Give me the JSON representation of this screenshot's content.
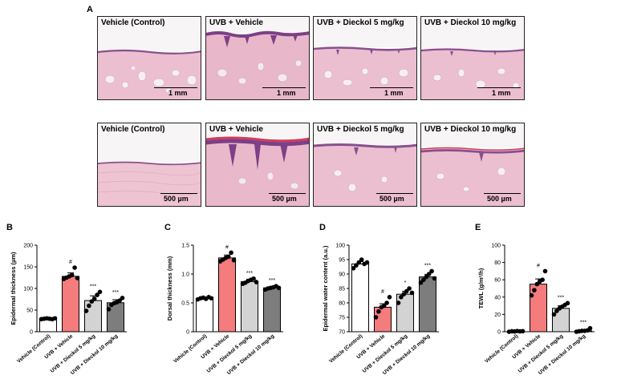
{
  "figure": {
    "panels": {
      "A": "A",
      "B": "B",
      "C": "C",
      "D": "D",
      "E": "E"
    },
    "histology": {
      "row1_scale": "1 mm",
      "row2_scale": "500 µm",
      "titles": [
        "Vehicle (Control)",
        "UVB + Vehicle",
        "UVB + Dieckol 5 mg/kg",
        "UVB + Dieckol 10 mg/kg"
      ]
    }
  },
  "chart_data": [
    {
      "type": "bar",
      "ylabel": "Epidermal thickness (µm)",
      "categories": [
        "Vehicle (Control)",
        "UVB + Vehicle",
        "UVB + Dieckol 5 mg/kg",
        "UVB + Dieckol 10 mg/kg"
      ],
      "values": [
        30,
        128,
        72,
        67
      ],
      "errors": [
        2,
        8,
        11,
        7
      ],
      "points": [
        [
          29,
          30,
          31,
          30,
          29,
          31
        ],
        [
          122,
          125,
          128,
          131,
          148,
          124
        ],
        [
          48,
          60,
          70,
          76,
          85,
          92
        ],
        [
          52,
          62,
          66,
          68,
          72,
          78
        ]
      ],
      "annotations": [
        "",
        "#",
        "***",
        "***"
      ],
      "colors": [
        "#ffffff",
        "#f47c7c",
        "#d3d3d3",
        "#7d7d7d"
      ],
      "ylim": [
        0,
        200
      ],
      "yticks": [
        "0",
        "50",
        "100",
        "150",
        "200"
      ]
    },
    {
      "type": "bar",
      "ylabel": "Dorsal thickness (mm)",
      "categories": [
        "Vehicle (Control)",
        "UVB + Vehicle",
        "UVB + Dieckol 5 mg/kg",
        "UVB + Dieckol 10 mg/kg"
      ],
      "values": [
        0.58,
        1.28,
        0.87,
        0.76
      ],
      "errors": [
        0.02,
        0.05,
        0.04,
        0.02
      ],
      "points": [
        [
          0.56,
          0.58,
          0.59,
          0.57,
          0.6,
          0.58
        ],
        [
          1.22,
          1.25,
          1.28,
          1.3,
          1.37,
          1.24
        ],
        [
          0.83,
          0.85,
          0.88,
          0.9,
          0.92,
          0.86
        ],
        [
          0.73,
          0.75,
          0.76,
          0.77,
          0.79,
          0.76
        ]
      ],
      "annotations": [
        "",
        "#",
        "***",
        "***"
      ],
      "colors": [
        "#ffffff",
        "#f47c7c",
        "#d3d3d3",
        "#7d7d7d"
      ],
      "ylim": [
        0,
        1.5
      ],
      "yticks": [
        "0",
        "0.5",
        "1.0",
        "1.5"
      ]
    },
    {
      "type": "bar",
      "ylabel": "Epidermal water content (a.u.)",
      "categories": [
        "Vehicle (Control)",
        "UVB + Vehicle",
        "UVB + Dieckol 5 mg/kg",
        "UVB + Dieckol 10 mg/kg"
      ],
      "values": [
        93.5,
        78.5,
        83,
        89
      ],
      "errors": [
        0.8,
        1.2,
        1.0,
        0.9
      ],
      "points": [
        [
          92,
          93,
          94,
          95,
          93.5,
          94
        ],
        [
          75,
          77,
          78.5,
          79,
          80,
          82
        ],
        [
          80,
          82,
          83,
          84,
          85,
          83.5
        ],
        [
          87,
          88,
          89,
          90,
          91,
          88.5
        ]
      ],
      "annotations": [
        "",
        "#",
        "*",
        "***"
      ],
      "colors": [
        "#ffffff",
        "#f47c7c",
        "#d3d3d3",
        "#7d7d7d"
      ],
      "ylim": [
        70,
        100
      ],
      "yticks": [
        "70",
        "75",
        "80",
        "85",
        "90",
        "95",
        "100"
      ]
    },
    {
      "type": "bar",
      "ylabel": "TEWL (g/m²/h)",
      "categories": [
        "Vehicle (Control)",
        "UVB + Vehicle",
        "UVB + Dieckol 5 mg/kg",
        "UVB + Dieckol 10 mg/kg"
      ],
      "values": [
        0.5,
        55,
        27,
        1
      ],
      "errors": [
        0.3,
        6,
        3,
        0.8
      ],
      "points": [
        [
          0,
          0.5,
          0.3,
          0.8,
          0.4,
          0.6
        ],
        [
          42,
          48,
          55,
          58,
          60,
          70
        ],
        [
          20,
          24,
          27,
          29,
          31,
          33
        ],
        [
          0,
          0.5,
          1,
          1,
          1.5,
          4
        ]
      ],
      "annotations": [
        "",
        "#",
        "***",
        "***"
      ],
      "colors": [
        "#ffffff",
        "#f47c7c",
        "#d3d3d3",
        "#7d7d7d"
      ],
      "ylim": [
        0,
        100
      ],
      "yticks": [
        "0",
        "20",
        "40",
        "60",
        "80",
        "100"
      ]
    }
  ]
}
